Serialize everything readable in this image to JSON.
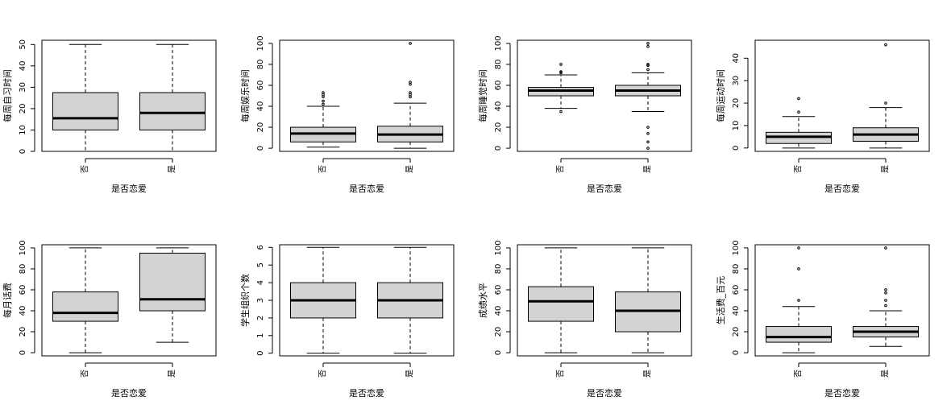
{
  "chart_data": [
    {
      "type": "box",
      "xlabel": "是否恋爱",
      "ylabel": "每周自习时间",
      "ylim": [
        0,
        52
      ],
      "yticks": [
        0,
        10,
        20,
        30,
        40,
        50
      ],
      "categories": [
        "否",
        "是"
      ],
      "boxes": [
        {
          "min": 0,
          "q1": 10,
          "median": 15.5,
          "q3": 27.5,
          "max": 50,
          "outliers": []
        },
        {
          "min": 0,
          "q1": 10,
          "median": 18,
          "q3": 27.5,
          "max": 50,
          "outliers": []
        }
      ]
    },
    {
      "type": "box",
      "xlabel": "是否恋爱",
      "ylabel": "每周娱乐时间",
      "ylim": [
        -3,
        103
      ],
      "yticks": [
        0,
        20,
        40,
        60,
        80,
        100
      ],
      "categories": [
        "否",
        "是"
      ],
      "boxes": [
        {
          "min": 1,
          "q1": 6,
          "median": 14,
          "q3": 20,
          "max": 40,
          "outliers": [
            42,
            45,
            49,
            51,
            53
          ]
        },
        {
          "min": 0,
          "q1": 6,
          "median": 13,
          "q3": 21,
          "max": 43,
          "outliers": [
            49,
            51,
            53,
            61,
            63,
            100
          ]
        }
      ]
    },
    {
      "type": "box",
      "xlabel": "是否恋爱",
      "ylabel": "每周睡觉时间",
      "ylim": [
        -3,
        103
      ],
      "yticks": [
        0,
        20,
        40,
        60,
        80,
        100
      ],
      "categories": [
        "否",
        "是"
      ],
      "boxes": [
        {
          "min": 38,
          "q1": 50,
          "median": 55,
          "q3": 58,
          "max": 70,
          "outliers": [
            35,
            72,
            73,
            80
          ]
        },
        {
          "min": 35,
          "q1": 50,
          "median": 55,
          "q3": 60,
          "max": 72,
          "outliers": [
            0,
            6,
            14,
            20,
            75,
            79,
            80,
            97,
            100
          ]
        }
      ]
    },
    {
      "type": "box",
      "xlabel": "是否恋爱",
      "ylabel": "每周运动时间",
      "ylim": [
        -1.5,
        48
      ],
      "yticks": [
        0,
        10,
        20,
        30,
        40
      ],
      "categories": [
        "否",
        "是"
      ],
      "boxes": [
        {
          "min": 0,
          "q1": 2,
          "median": 5,
          "q3": 7,
          "max": 14,
          "outliers": [
            16,
            22
          ]
        },
        {
          "min": 0,
          "q1": 3,
          "median": 6,
          "q3": 9,
          "max": 18,
          "outliers": [
            20,
            46
          ]
        }
      ]
    },
    {
      "type": "box",
      "xlabel": "是否恋爱",
      "ylabel": "每月话费",
      "ylim": [
        -3,
        103
      ],
      "yticks": [
        0,
        20,
        40,
        60,
        80,
        100
      ],
      "categories": [
        "否",
        "是"
      ],
      "boxes": [
        {
          "min": 0,
          "q1": 30,
          "median": 38,
          "q3": 58,
          "max": 100,
          "outliers": []
        },
        {
          "min": 10,
          "q1": 40,
          "median": 51,
          "q3": 95,
          "max": 100,
          "outliers": []
        }
      ]
    },
    {
      "type": "box",
      "xlabel": "是否恋爱",
      "ylabel": "学生组织个数",
      "ylim": [
        -0.15,
        6.15
      ],
      "yticks": [
        0,
        1,
        2,
        3,
        4,
        5,
        6
      ],
      "categories": [
        "否",
        "是"
      ],
      "boxes": [
        {
          "min": 0,
          "q1": 2,
          "median": 3,
          "q3": 4,
          "max": 6,
          "outliers": []
        },
        {
          "min": 0,
          "q1": 2,
          "median": 3,
          "q3": 4,
          "max": 6,
          "outliers": []
        }
      ]
    },
    {
      "type": "box",
      "xlabel": "是否恋爱",
      "ylabel": "成绩水平",
      "ylim": [
        -3,
        103
      ],
      "yticks": [
        0,
        20,
        40,
        60,
        80,
        100
      ],
      "categories": [
        "否",
        "是"
      ],
      "boxes": [
        {
          "min": 0,
          "q1": 30,
          "median": 49,
          "q3": 63,
          "max": 100,
          "outliers": []
        },
        {
          "min": 0,
          "q1": 20,
          "median": 40,
          "q3": 58,
          "max": 100,
          "outliers": []
        }
      ]
    },
    {
      "type": "box",
      "xlabel": "是否恋爱",
      "ylabel": "生活费_百元",
      "ylim": [
        -3,
        103
      ],
      "yticks": [
        0,
        20,
        40,
        60,
        80,
        100
      ],
      "categories": [
        "否",
        "是"
      ],
      "boxes": [
        {
          "min": 0,
          "q1": 10,
          "median": 15,
          "q3": 25,
          "max": 44,
          "outliers": [
            50,
            80,
            100
          ]
        },
        {
          "min": 6,
          "q1": 15,
          "median": 20,
          "q3": 25,
          "max": 40,
          "outliers": [
            45,
            50,
            57,
            60,
            100
          ]
        }
      ]
    }
  ]
}
